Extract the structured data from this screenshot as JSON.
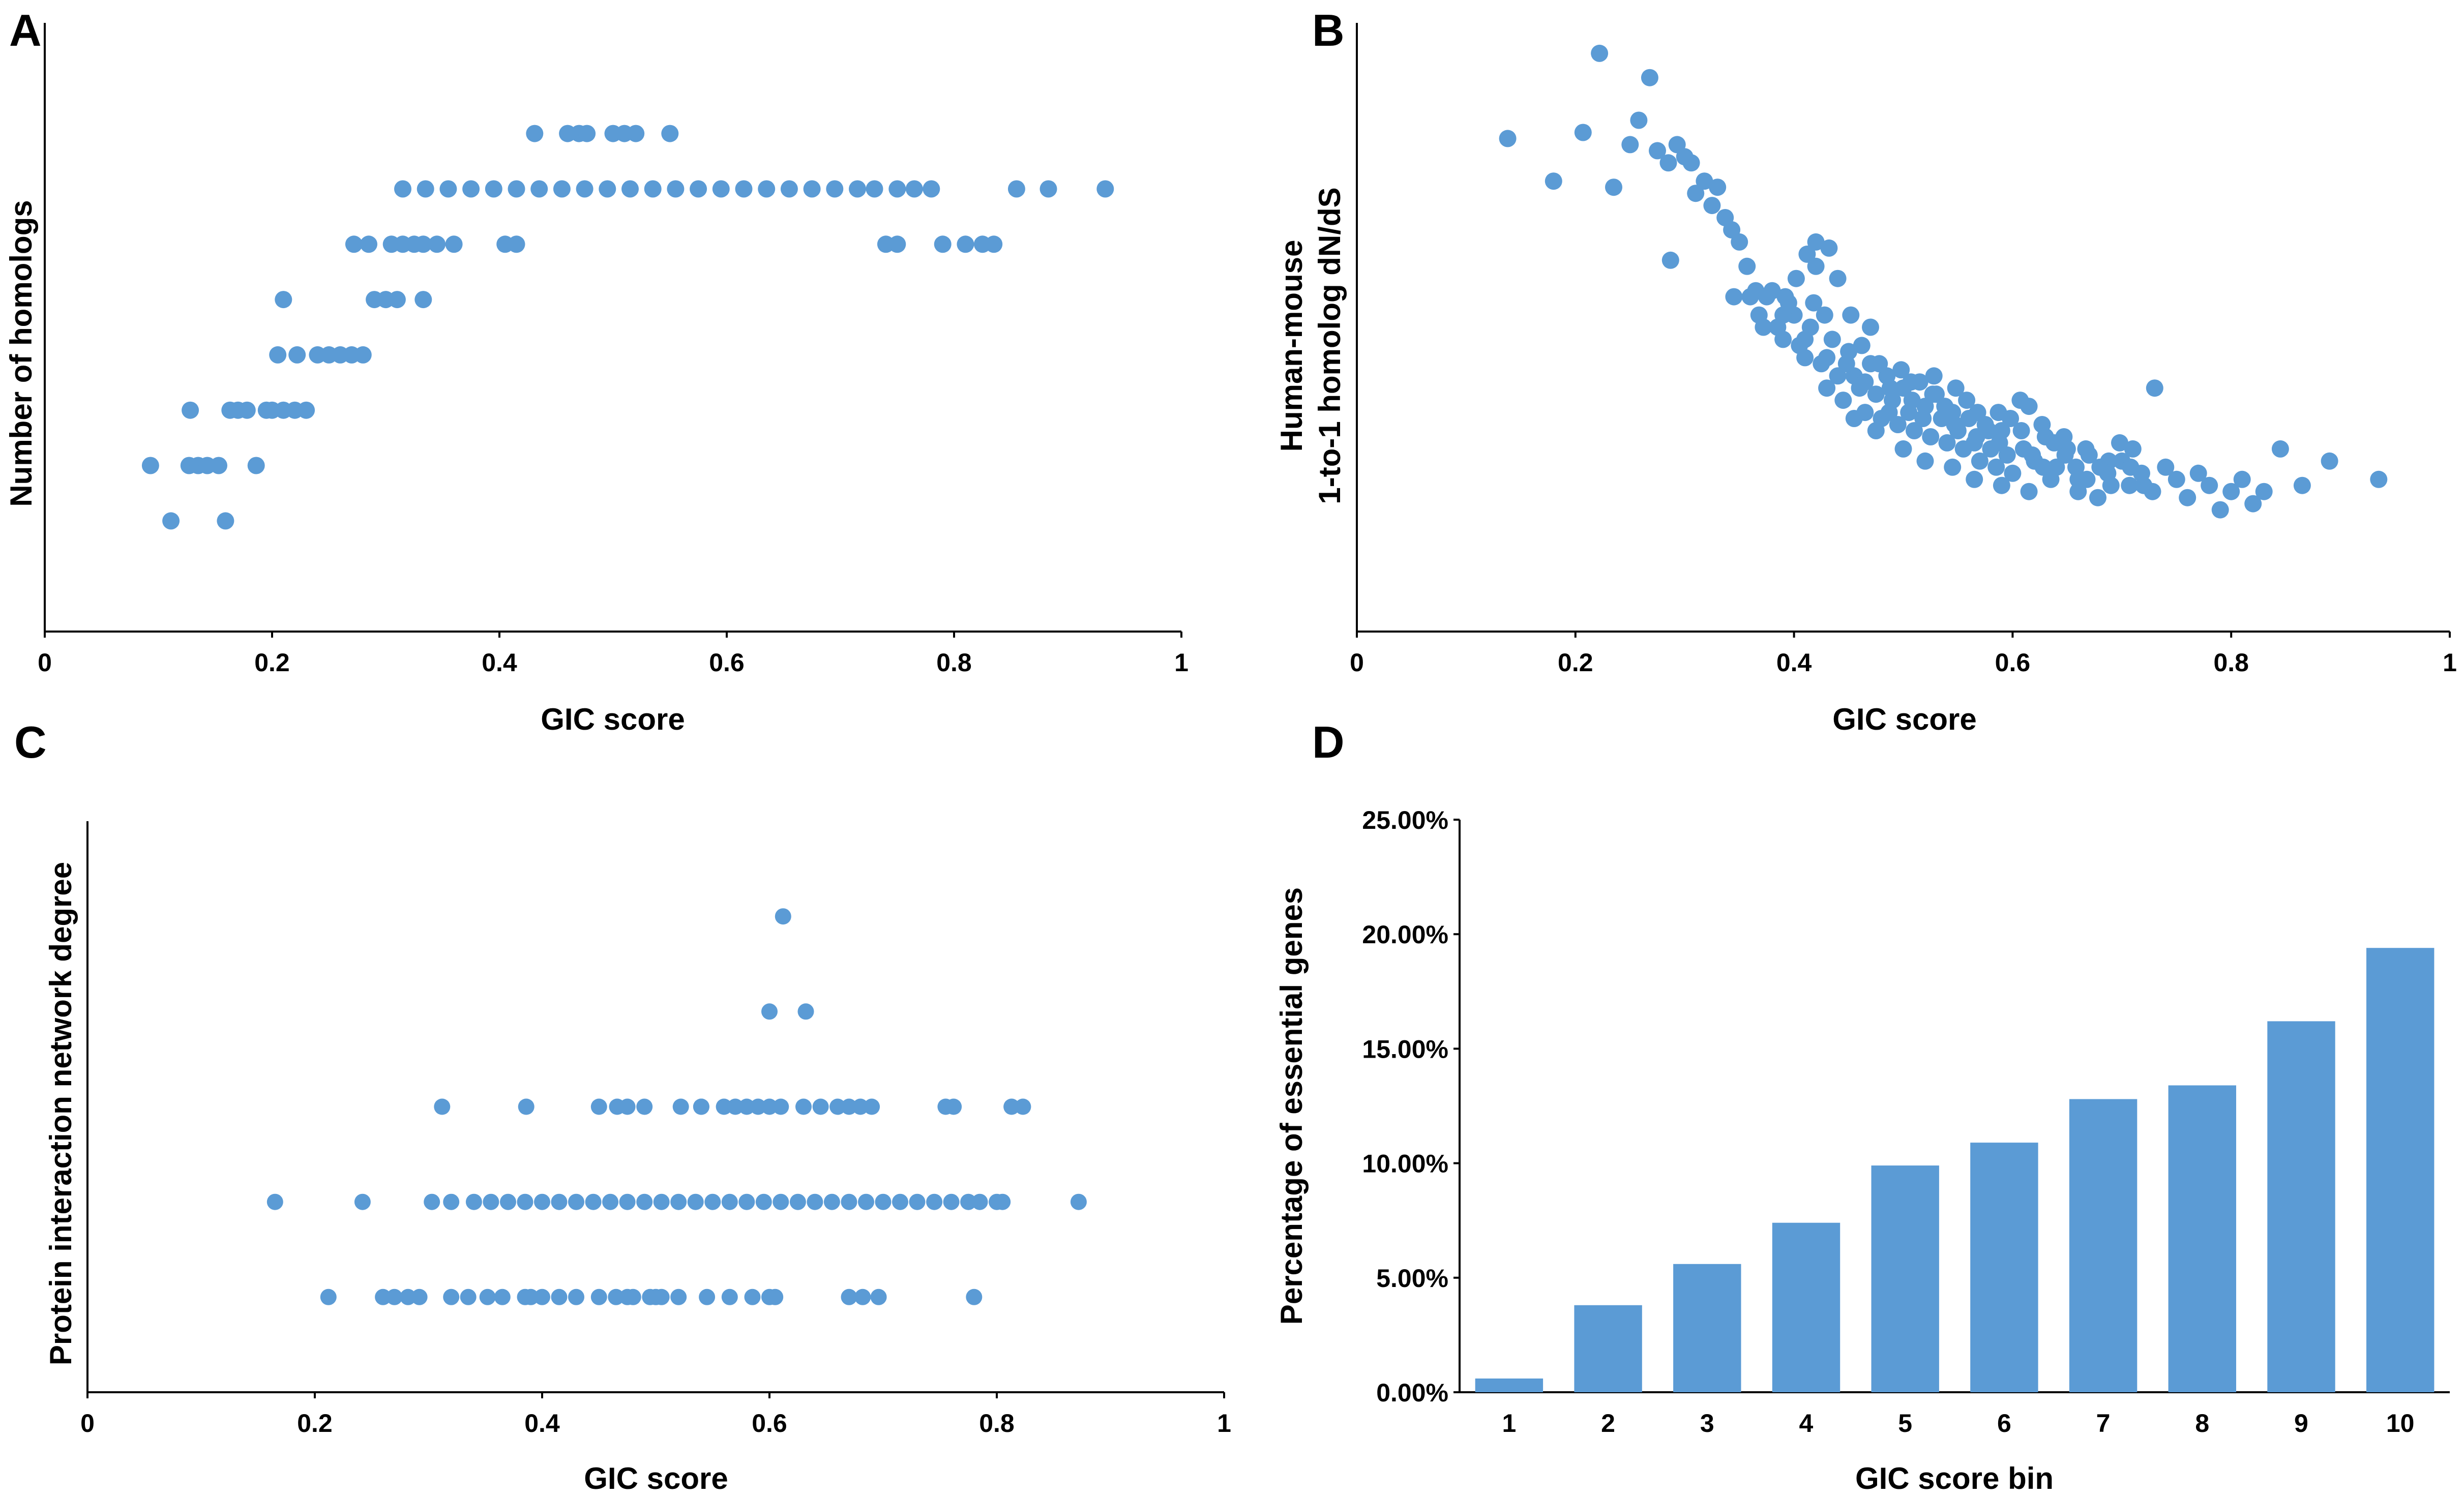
{
  "colors": {
    "marker": "#5b9bd5",
    "axis": "#000000"
  },
  "chart_data": [
    {
      "type": "scatter",
      "panel_label": "A",
      "title": "",
      "xlabel": "GIC score",
      "ylabel": "Number of homologs",
      "xlim": [
        0,
        1
      ],
      "ylim": [
        0,
        11
      ],
      "xticks": [
        "0",
        "0.2",
        "0.4",
        "0.6",
        "0.8",
        "1"
      ],
      "yticks_shown": false,
      "grid": false,
      "points": [
        [
          0.093,
          3
        ],
        [
          0.127,
          3
        ],
        [
          0.135,
          3
        ],
        [
          0.143,
          3
        ],
        [
          0.153,
          3
        ],
        [
          0.186,
          3
        ],
        [
          0.111,
          2
        ],
        [
          0.159,
          2
        ],
        [
          0.128,
          4
        ],
        [
          0.163,
          4
        ],
        [
          0.17,
          4
        ],
        [
          0.178,
          4
        ],
        [
          0.195,
          4
        ],
        [
          0.2,
          4
        ],
        [
          0.21,
          4
        ],
        [
          0.22,
          4
        ],
        [
          0.23,
          4
        ],
        [
          0.205,
          5
        ],
        [
          0.222,
          5
        ],
        [
          0.24,
          5
        ],
        [
          0.25,
          5
        ],
        [
          0.26,
          5
        ],
        [
          0.27,
          5
        ],
        [
          0.28,
          5
        ],
        [
          0.21,
          6
        ],
        [
          0.29,
          6
        ],
        [
          0.3,
          6
        ],
        [
          0.31,
          6
        ],
        [
          0.333,
          6
        ],
        [
          0.272,
          7
        ],
        [
          0.285,
          7
        ],
        [
          0.305,
          7
        ],
        [
          0.315,
          7
        ],
        [
          0.325,
          7
        ],
        [
          0.333,
          7
        ],
        [
          0.345,
          7
        ],
        [
          0.36,
          7
        ],
        [
          0.405,
          7
        ],
        [
          0.415,
          7
        ],
        [
          0.74,
          7
        ],
        [
          0.75,
          7
        ],
        [
          0.79,
          7
        ],
        [
          0.81,
          7
        ],
        [
          0.825,
          7
        ],
        [
          0.835,
          7
        ],
        [
          0.315,
          8
        ],
        [
          0.335,
          8
        ],
        [
          0.355,
          8
        ],
        [
          0.375,
          8
        ],
        [
          0.395,
          8
        ],
        [
          0.415,
          8
        ],
        [
          0.435,
          8
        ],
        [
          0.455,
          8
        ],
        [
          0.475,
          8
        ],
        [
          0.495,
          8
        ],
        [
          0.515,
          8
        ],
        [
          0.535,
          8
        ],
        [
          0.555,
          8
        ],
        [
          0.575,
          8
        ],
        [
          0.595,
          8
        ],
        [
          0.615,
          8
        ],
        [
          0.635,
          8
        ],
        [
          0.655,
          8
        ],
        [
          0.675,
          8
        ],
        [
          0.695,
          8
        ],
        [
          0.715,
          8
        ],
        [
          0.73,
          8
        ],
        [
          0.75,
          8
        ],
        [
          0.765,
          8
        ],
        [
          0.78,
          8
        ],
        [
          0.855,
          8
        ],
        [
          0.883,
          8
        ],
        [
          0.933,
          8
        ],
        [
          0.431,
          9
        ],
        [
          0.46,
          9
        ],
        [
          0.47,
          9
        ],
        [
          0.477,
          9
        ],
        [
          0.5,
          9
        ],
        [
          0.51,
          9
        ],
        [
          0.52,
          9
        ],
        [
          0.55,
          9
        ]
      ]
    },
    {
      "type": "scatter",
      "panel_label": "B",
      "title": "",
      "xlabel": "GIC score",
      "ylabel": "Human-mouse\n1-to-1 homolog dN/dS",
      "ylabel_lines": [
        "Human-mouse",
        "1-to-1 homolog dN/dS"
      ],
      "xlim": [
        0,
        1
      ],
      "ylim": [
        0,
        1
      ],
      "xticks": [
        "0",
        "0.2",
        "0.4",
        "0.6",
        "0.8",
        "1"
      ],
      "yticks_shown": false,
      "grid": false,
      "points": [
        [
          0.138,
          0.81
        ],
        [
          0.18,
          0.74
        ],
        [
          0.207,
          0.82
        ],
        [
          0.222,
          0.95
        ],
        [
          0.235,
          0.73
        ],
        [
          0.25,
          0.8
        ],
        [
          0.258,
          0.84
        ],
        [
          0.268,
          0.91
        ],
        [
          0.275,
          0.79
        ],
        [
          0.285,
          0.77
        ],
        [
          0.287,
          0.61
        ],
        [
          0.293,
          0.8
        ],
        [
          0.3,
          0.78
        ],
        [
          0.306,
          0.77
        ],
        [
          0.31,
          0.72
        ],
        [
          0.318,
          0.74
        ],
        [
          0.325,
          0.7
        ],
        [
          0.33,
          0.73
        ],
        [
          0.337,
          0.68
        ],
        [
          0.343,
          0.66
        ],
        [
          0.35,
          0.64
        ],
        [
          0.357,
          0.6
        ],
        [
          0.36,
          0.55
        ],
        [
          0.368,
          0.52
        ],
        [
          0.375,
          0.55
        ],
        [
          0.385,
          0.5
        ],
        [
          0.39,
          0.48
        ],
        [
          0.395,
          0.54
        ],
        [
          0.4,
          0.52
        ],
        [
          0.405,
          0.47
        ],
        [
          0.41,
          0.45
        ],
        [
          0.415,
          0.5
        ],
        [
          0.42,
          0.6
        ],
        [
          0.425,
          0.44
        ],
        [
          0.43,
          0.4
        ],
        [
          0.435,
          0.48
        ],
        [
          0.44,
          0.42
        ],
        [
          0.445,
          0.38
        ],
        [
          0.45,
          0.46
        ],
        [
          0.455,
          0.42
        ],
        [
          0.46,
          0.4
        ],
        [
          0.465,
          0.36
        ],
        [
          0.47,
          0.44
        ],
        [
          0.475,
          0.39
        ],
        [
          0.48,
          0.35
        ],
        [
          0.485,
          0.42
        ],
        [
          0.49,
          0.38
        ],
        [
          0.495,
          0.34
        ],
        [
          0.5,
          0.4
        ],
        [
          0.505,
          0.36
        ],
        [
          0.51,
          0.33
        ],
        [
          0.515,
          0.41
        ],
        [
          0.52,
          0.37
        ],
        [
          0.525,
          0.32
        ],
        [
          0.53,
          0.39
        ],
        [
          0.535,
          0.35
        ],
        [
          0.54,
          0.31
        ],
        [
          0.545,
          0.36
        ],
        [
          0.55,
          0.33
        ],
        [
          0.555,
          0.3
        ],
        [
          0.56,
          0.35
        ],
        [
          0.565,
          0.31
        ],
        [
          0.57,
          0.28
        ],
        [
          0.575,
          0.34
        ],
        [
          0.58,
          0.3
        ],
        [
          0.585,
          0.27
        ],
        [
          0.59,
          0.33
        ],
        [
          0.595,
          0.29
        ],
        [
          0.6,
          0.26
        ],
        [
          0.61,
          0.3
        ],
        [
          0.615,
          0.37
        ],
        [
          0.62,
          0.28
        ],
        [
          0.63,
          0.32
        ],
        [
          0.64,
          0.27
        ],
        [
          0.65,
          0.3
        ],
        [
          0.66,
          0.25
        ],
        [
          0.67,
          0.29
        ],
        [
          0.68,
          0.27
        ],
        [
          0.69,
          0.24
        ],
        [
          0.7,
          0.28
        ],
        [
          0.71,
          0.3
        ],
        [
          0.72,
          0.24
        ],
        [
          0.73,
          0.4
        ],
        [
          0.74,
          0.27
        ],
        [
          0.75,
          0.25
        ],
        [
          0.76,
          0.22
        ],
        [
          0.77,
          0.26
        ],
        [
          0.78,
          0.24
        ],
        [
          0.79,
          0.2
        ],
        [
          0.8,
          0.23
        ],
        [
          0.81,
          0.25
        ],
        [
          0.82,
          0.21
        ],
        [
          0.83,
          0.23
        ],
        [
          0.845,
          0.3
        ],
        [
          0.865,
          0.24
        ],
        [
          0.89,
          0.28
        ],
        [
          0.935,
          0.25
        ],
        [
          0.345,
          0.55
        ],
        [
          0.365,
          0.56
        ],
        [
          0.38,
          0.56
        ],
        [
          0.392,
          0.55
        ],
        [
          0.402,
          0.58
        ],
        [
          0.412,
          0.62
        ],
        [
          0.42,
          0.64
        ],
        [
          0.432,
          0.63
        ],
        [
          0.44,
          0.58
        ],
        [
          0.452,
          0.52
        ],
        [
          0.462,
          0.47
        ],
        [
          0.47,
          0.5
        ],
        [
          0.478,
          0.44
        ],
        [
          0.488,
          0.4
        ],
        [
          0.498,
          0.43
        ],
        [
          0.508,
          0.38
        ],
        [
          0.518,
          0.35
        ],
        [
          0.528,
          0.42
        ],
        [
          0.538,
          0.37
        ],
        [
          0.548,
          0.4
        ],
        [
          0.558,
          0.38
        ],
        [
          0.568,
          0.36
        ],
        [
          0.578,
          0.33
        ],
        [
          0.588,
          0.31
        ],
        [
          0.598,
          0.35
        ],
        [
          0.608,
          0.33
        ],
        [
          0.618,
          0.29
        ],
        [
          0.628,
          0.27
        ],
        [
          0.638,
          0.31
        ],
        [
          0.648,
          0.29
        ],
        [
          0.658,
          0.27
        ],
        [
          0.668,
          0.25
        ],
        [
          0.678,
          0.22
        ],
        [
          0.688,
          0.28
        ],
        [
          0.698,
          0.31
        ],
        [
          0.708,
          0.27
        ],
        [
          0.718,
          0.26
        ],
        [
          0.728,
          0.23
        ],
        [
          0.455,
          0.35
        ],
        [
          0.475,
          0.33
        ],
        [
          0.5,
          0.3
        ],
        [
          0.52,
          0.28
        ],
        [
          0.545,
          0.27
        ],
        [
          0.565,
          0.25
        ],
        [
          0.59,
          0.24
        ],
        [
          0.615,
          0.23
        ],
        [
          0.635,
          0.25
        ],
        [
          0.66,
          0.23
        ],
        [
          0.43,
          0.45
        ],
        [
          0.418,
          0.54
        ],
        [
          0.39,
          0.52
        ],
        [
          0.372,
          0.5
        ],
        [
          0.41,
          0.48
        ],
        [
          0.428,
          0.52
        ],
        [
          0.448,
          0.44
        ],
        [
          0.465,
          0.41
        ],
        [
          0.487,
          0.36
        ],
        [
          0.507,
          0.41
        ],
        [
          0.527,
          0.39
        ],
        [
          0.547,
          0.34
        ],
        [
          0.567,
          0.32
        ],
        [
          0.587,
          0.36
        ],
        [
          0.607,
          0.38
        ],
        [
          0.627,
          0.34
        ],
        [
          0.647,
          0.32
        ],
        [
          0.667,
          0.3
        ],
        [
          0.687,
          0.26
        ],
        [
          0.707,
          0.24
        ]
      ]
    },
    {
      "type": "scatter",
      "panel_label": "C",
      "title": "",
      "xlabel": "GIC score",
      "ylabel": "Protein interaction network degree",
      "xlim": [
        0,
        1
      ],
      "ylim": [
        0,
        6
      ],
      "xticks": [
        "0",
        "0.2",
        "0.4",
        "0.6",
        "0.8",
        "1"
      ],
      "yticks_shown": false,
      "grid": false,
      "points": [
        [
          0.212,
          1
        ],
        [
          0.26,
          1
        ],
        [
          0.27,
          1
        ],
        [
          0.282,
          1
        ],
        [
          0.292,
          1
        ],
        [
          0.32,
          1
        ],
        [
          0.335,
          1
        ],
        [
          0.352,
          1
        ],
        [
          0.365,
          1
        ],
        [
          0.4,
          1
        ],
        [
          0.415,
          1
        ],
        [
          0.43,
          1
        ],
        [
          0.45,
          1
        ],
        [
          0.465,
          1
        ],
        [
          0.475,
          1
        ],
        [
          0.48,
          1
        ],
        [
          0.495,
          1
        ],
        [
          0.5,
          1
        ],
        [
          0.505,
          1
        ],
        [
          0.52,
          1
        ],
        [
          0.545,
          1
        ],
        [
          0.565,
          1
        ],
        [
          0.585,
          1
        ],
        [
          0.6,
          1
        ],
        [
          0.605,
          1
        ],
        [
          0.67,
          1
        ],
        [
          0.682,
          1
        ],
        [
          0.696,
          1
        ],
        [
          0.78,
          1
        ],
        [
          0.385,
          1
        ],
        [
          0.39,
          1
        ],
        [
          0.165,
          2
        ],
        [
          0.242,
          2
        ],
        [
          0.303,
          2
        ],
        [
          0.32,
          2
        ],
        [
          0.34,
          2
        ],
        [
          0.355,
          2
        ],
        [
          0.37,
          2
        ],
        [
          0.385,
          2
        ],
        [
          0.4,
          2
        ],
        [
          0.415,
          2
        ],
        [
          0.43,
          2
        ],
        [
          0.445,
          2
        ],
        [
          0.46,
          2
        ],
        [
          0.475,
          2
        ],
        [
          0.49,
          2
        ],
        [
          0.505,
          2
        ],
        [
          0.52,
          2
        ],
        [
          0.535,
          2
        ],
        [
          0.55,
          2
        ],
        [
          0.565,
          2
        ],
        [
          0.58,
          2
        ],
        [
          0.595,
          2
        ],
        [
          0.61,
          2
        ],
        [
          0.625,
          2
        ],
        [
          0.64,
          2
        ],
        [
          0.655,
          2
        ],
        [
          0.67,
          2
        ],
        [
          0.685,
          2
        ],
        [
          0.7,
          2
        ],
        [
          0.715,
          2
        ],
        [
          0.73,
          2
        ],
        [
          0.745,
          2
        ],
        [
          0.76,
          2
        ],
        [
          0.775,
          2
        ],
        [
          0.785,
          2
        ],
        [
          0.8,
          2
        ],
        [
          0.805,
          2
        ],
        [
          0.872,
          2
        ],
        [
          0.312,
          3
        ],
        [
          0.386,
          3
        ],
        [
          0.45,
          3
        ],
        [
          0.466,
          3
        ],
        [
          0.475,
          3
        ],
        [
          0.49,
          3
        ],
        [
          0.522,
          3
        ],
        [
          0.54,
          3
        ],
        [
          0.54,
          3
        ],
        [
          0.56,
          3
        ],
        [
          0.57,
          3
        ],
        [
          0.58,
          3
        ],
        [
          0.59,
          3
        ],
        [
          0.6,
          3
        ],
        [
          0.61,
          3
        ],
        [
          0.63,
          3
        ],
        [
          0.645,
          3
        ],
        [
          0.66,
          3
        ],
        [
          0.67,
          3
        ],
        [
          0.68,
          3
        ],
        [
          0.69,
          3
        ],
        [
          0.755,
          3
        ],
        [
          0.762,
          3
        ],
        [
          0.813,
          3
        ],
        [
          0.823,
          3
        ],
        [
          0.6,
          4
        ],
        [
          0.632,
          4
        ],
        [
          0.612,
          5
        ]
      ]
    },
    {
      "type": "bar",
      "panel_label": "D",
      "title": "",
      "xlabel": "GIC score bin",
      "ylabel": "Percentage of essential genes",
      "categories": [
        "1",
        "2",
        "3",
        "4",
        "5",
        "6",
        "7",
        "8",
        "9",
        "10"
      ],
      "values": [
        0.6,
        3.8,
        5.6,
        7.4,
        9.9,
        10.9,
        12.8,
        13.4,
        16.2,
        19.4
      ],
      "ylim": [
        0,
        25
      ],
      "yticks": [
        "0.00%",
        "5.00%",
        "10.00%",
        "15.00%",
        "20.00%",
        "25.00%"
      ],
      "grid": false
    }
  ]
}
